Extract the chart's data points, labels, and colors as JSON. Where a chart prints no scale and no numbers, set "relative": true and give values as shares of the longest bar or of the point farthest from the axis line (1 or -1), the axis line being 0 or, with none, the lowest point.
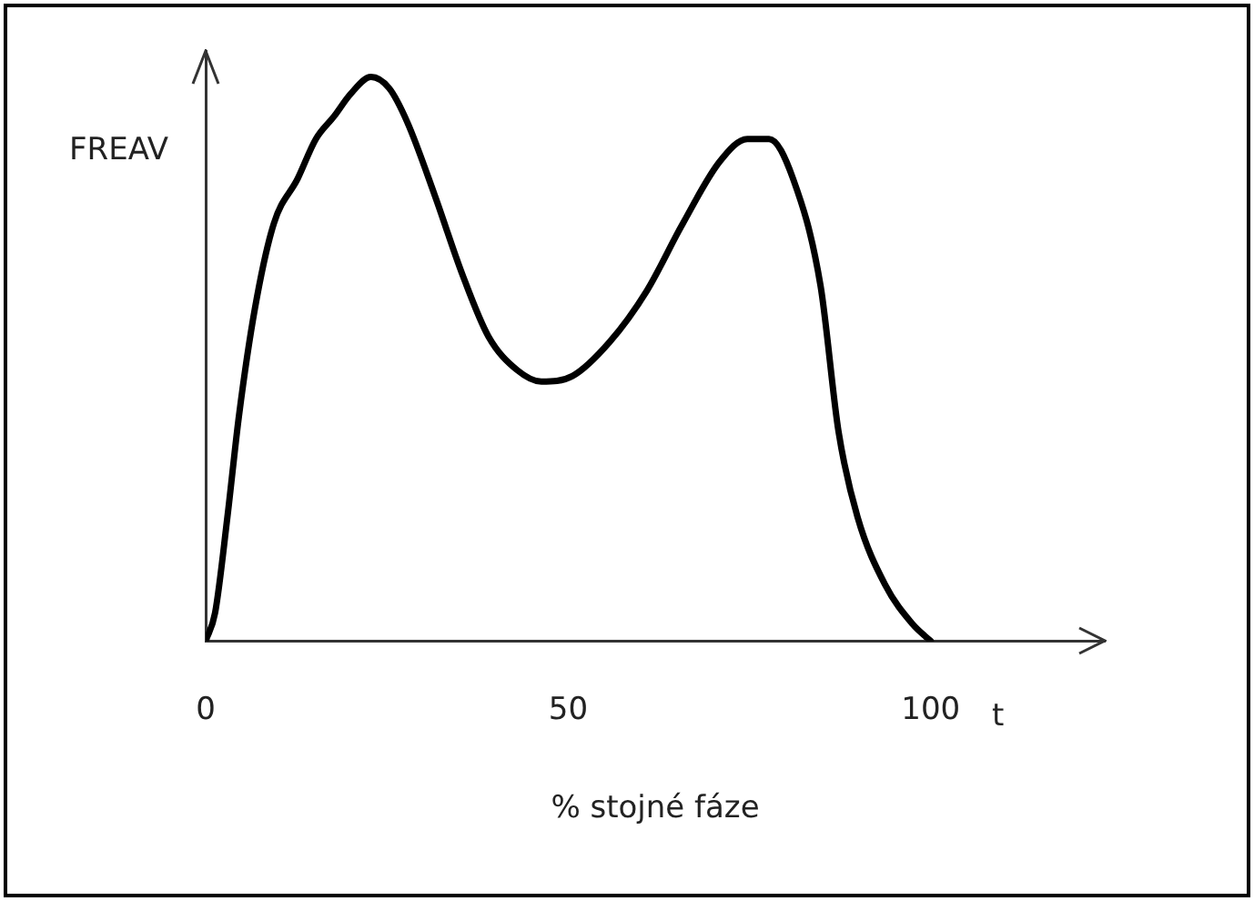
{
  "chart_data": {
    "type": "line",
    "relative": true,
    "xlabel": "% stojné fáze",
    "ylabel": "FREAV",
    "annotations": [
      "t"
    ],
    "xlim": [
      0,
      124
    ],
    "xticks": [
      0,
      50,
      100
    ],
    "grid": false,
    "legend": false,
    "marker": "none",
    "line_style": "solid",
    "x": [
      0,
      1.3,
      3,
      4.6,
      6.8,
      9.4,
      12.7,
      15.2,
      17.7,
      20,
      22.8,
      25.3,
      27.8,
      31.6,
      35.4,
      39,
      43,
      46.3,
      50.6,
      55.7,
      60.8,
      65.8,
      70.9,
      74.7,
      77.7,
      81,
      84.8,
      87.3,
      89.9,
      93.7,
      97.5,
      100
    ],
    "series": [
      {
        "color": "#000000",
        "values": [
          0,
          0.05,
          0.22,
          0.4,
          0.59,
          0.74,
          0.82,
          0.89,
          0.93,
          0.97,
          1,
          0.98,
          0.92,
          0.79,
          0.65,
          0.54,
          0.48,
          0.46,
          0.47,
          0.53,
          0.62,
          0.74,
          0.85,
          0.89,
          0.89,
          0.82,
          0.63,
          0.37,
          0.22,
          0.1,
          0.03,
          0
        ]
      }
    ]
  }
}
